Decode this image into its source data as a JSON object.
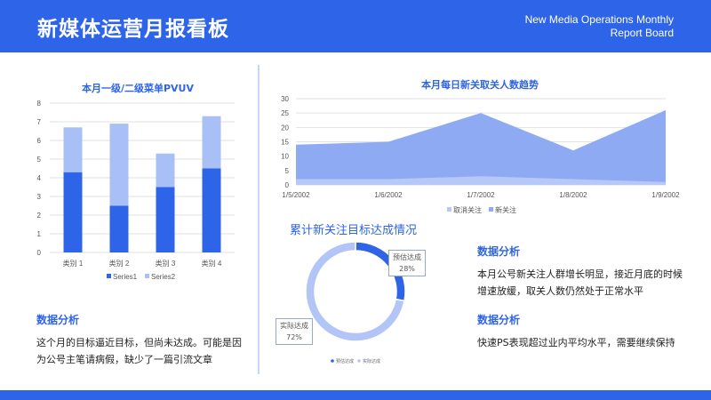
{
  "header": {
    "title": "新媒体运营月报看板",
    "subtitle_line1": "New Media Operations Monthly",
    "subtitle_line2": "Report Board"
  },
  "colors": {
    "primary": "#2e64e8",
    "light": "#a9c0f7",
    "area_back": "#8eaaf3",
    "area_front": "#b5c8f8",
    "donut_light": "#b3c5f7"
  },
  "left_chart": {
    "title": "本月一级/二级菜单PVUV"
  },
  "area_chart": {
    "title": "本月每日新关取关人数趋势"
  },
  "donut_chart": {
    "title": "累计新关注目标达成情况",
    "label_est": "预估达成",
    "label_est_value": "28%",
    "label_act": "实际达成",
    "label_act_value": "72%",
    "legend": [
      "预估达成",
      "实际达成"
    ]
  },
  "analysis_left": {
    "heading": "数据分析",
    "body": "这个月的目标逼近目标，但尚未达成。可能是因为公号主笔请病假，缺少了一篇引流文章"
  },
  "analysis_right_1": {
    "heading": "数据分析",
    "body": "本月公号新关注人群增长明显，接近月底的时候增速放缓，取关人数仍然处于正常水平"
  },
  "analysis_right_2": {
    "heading": "数据分析",
    "body": "快速PS表现超过业内平均水平，需要继续保持"
  },
  "chart_data": [
    {
      "type": "bar",
      "stacked": true,
      "title": "本月一级/二级菜单PVUV",
      "categories": [
        "类别 1",
        "类别 2",
        "类别 3",
        "类别 4"
      ],
      "series": [
        {
          "name": "Series1",
          "values": [
            4.3,
            2.5,
            3.5,
            4.5
          ],
          "color": "#2e64e8"
        },
        {
          "name": "Series2",
          "values": [
            2.4,
            4.4,
            1.8,
            2.8
          ],
          "color": "#a9c0f7"
        }
      ],
      "ylim": [
        0,
        8
      ],
      "yticks": [
        0,
        1,
        2,
        3,
        4,
        5,
        6,
        7,
        8
      ],
      "grid": true,
      "legend": "bottom"
    },
    {
      "type": "area",
      "title": "本月每日新关取关人数趋势",
      "x": [
        "1/5/2002",
        "1/6/2002",
        "1/7/2002",
        "1/8/2002",
        "1/9/2002"
      ],
      "series": [
        {
          "name": "新关注",
          "values": [
            14,
            15,
            25,
            12,
            26
          ],
          "color": "#8eaaf3"
        },
        {
          "name": "取消关注",
          "values": [
            2,
            2,
            3,
            2,
            1
          ],
          "color": "#b5c8f8"
        }
      ],
      "ylim": [
        0,
        30
      ],
      "yticks": [
        0,
        5,
        10,
        15,
        20,
        25,
        30
      ],
      "grid": true,
      "legend": "bottom"
    },
    {
      "type": "pie",
      "donut": true,
      "title": "累计新关注目标达成情况",
      "labels": [
        "预估达成",
        "实际达成"
      ],
      "values": [
        28,
        72
      ],
      "colors": [
        "#2e64e8",
        "#b3c5f7"
      ],
      "legend": "bottom"
    }
  ]
}
